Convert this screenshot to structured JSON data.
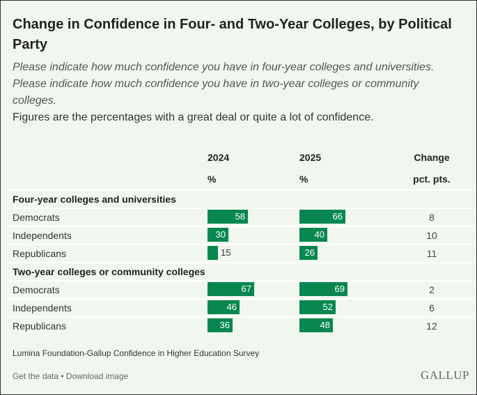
{
  "title": "Change in Confidence in Four- and Two-Year Colleges, by Political Party",
  "subtitle": "Please indicate how much confidence you have in four-year colleges and universities. Please indicate how much confidence you have in two-year colleges or community colleges.",
  "note": "Figures are the percentages with a great deal or quite a lot of confidence.",
  "headers": {
    "c2024": "2024",
    "c2024_unit": "%",
    "c2025": "2025",
    "c2025_unit": "%",
    "change": "Change",
    "change_unit": "pct. pts."
  },
  "colors": {
    "bar": "#07874f",
    "background": "#f1f7ef"
  },
  "chart_data": {
    "type": "table",
    "title": "Change in Confidence in Four- and Two-Year Colleges, by Political Party",
    "sections": [
      {
        "name": "Four-year colleges and universities",
        "rows": [
          {
            "label": "Democrats",
            "v2024": 58,
            "v2025": 66,
            "change": 8
          },
          {
            "label": "Independents",
            "v2024": 30,
            "v2025": 40,
            "change": 10
          },
          {
            "label": "Republicans",
            "v2024": 15,
            "v2025": 26,
            "change": 11
          }
        ]
      },
      {
        "name": "Two-year colleges or community colleges",
        "rows": [
          {
            "label": "Democrats",
            "v2024": 67,
            "v2025": 69,
            "change": 2
          },
          {
            "label": "Independents",
            "v2024": 46,
            "v2025": 52,
            "change": 6
          },
          {
            "label": "Republicans",
            "v2024": 36,
            "v2025": 48,
            "change": 12
          }
        ]
      }
    ]
  },
  "source": "Lumina Foundation-Gallup Confidence in Higher Education Survey",
  "links": {
    "get_data": "Get the data",
    "sep": " • ",
    "download": "Download image"
  },
  "logo": "GALLUP"
}
